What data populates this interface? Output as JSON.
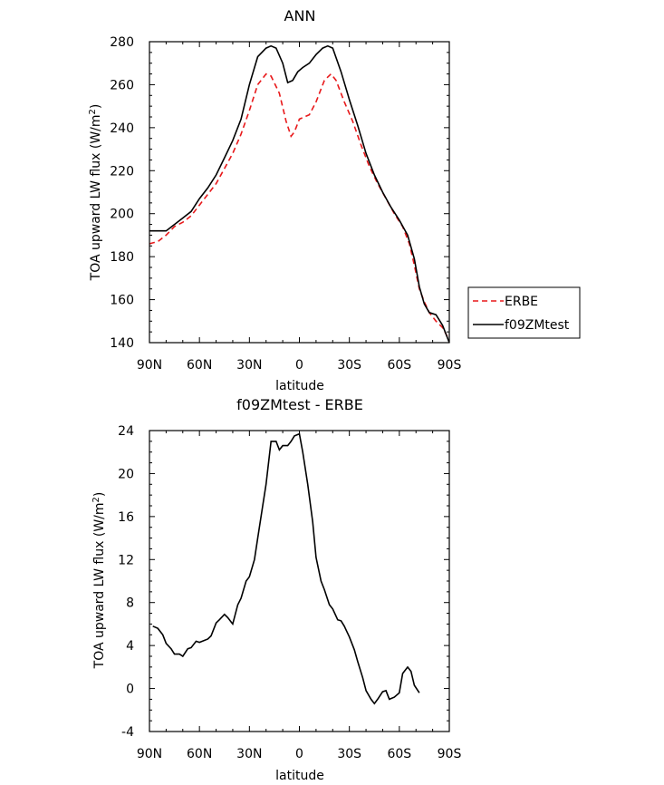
{
  "chart_data": [
    {
      "type": "line",
      "title": "ANN",
      "xlabel": "latitude",
      "ylabel": "TOA upward LW flux (W/m",
      "ylabel_sup": "2",
      "ylabel_tail": ")",
      "xlim": [
        -90,
        90
      ],
      "ylim": [
        140,
        280
      ],
      "x_ticks": [
        -90,
        -60,
        -30,
        0,
        30,
        60,
        90
      ],
      "x_tick_labels": [
        "90N",
        "60N",
        "30N",
        "0",
        "30S",
        "60S",
        "90S"
      ],
      "y_ticks": [
        140,
        160,
        180,
        200,
        220,
        240,
        260,
        280
      ],
      "y_tick_labels": [
        "140",
        "160",
        "180",
        "200",
        "220",
        "240",
        "260",
        "280"
      ],
      "legend_position": "right",
      "series": [
        {
          "name": "ERBE",
          "color": "#e8191b",
          "dash": "dashed",
          "points": [
            [
              -90,
              186
            ],
            [
              -85,
              187
            ],
            [
              -80,
              190
            ],
            [
              -75,
              194
            ],
            [
              -70,
              196
            ],
            [
              -65,
              199
            ],
            [
              -60,
              204
            ],
            [
              -55,
              209
            ],
            [
              -50,
              214
            ],
            [
              -45,
              221
            ],
            [
              -40,
              228
            ],
            [
              -35,
              237
            ],
            [
              -30,
              248
            ],
            [
              -25,
              260
            ],
            [
              -20,
              265
            ],
            [
              -17,
              264
            ],
            [
              -12,
              256
            ],
            [
              -8,
              243
            ],
            [
              -5,
              236
            ],
            [
              -3,
              238
            ],
            [
              0,
              244
            ],
            [
              3,
              245
            ],
            [
              6,
              246
            ],
            [
              10,
              252
            ],
            [
              15,
              262
            ],
            [
              19,
              265
            ],
            [
              22,
              262
            ],
            [
              27,
              252
            ],
            [
              32,
              243
            ],
            [
              37,
              232
            ],
            [
              42,
              222
            ],
            [
              47,
              214
            ],
            [
              52,
              207
            ],
            [
              57,
              200
            ],
            [
              62,
              194
            ],
            [
              66,
              186
            ],
            [
              69,
              176
            ],
            [
              72,
              165
            ],
            [
              75,
              159
            ],
            [
              78,
              154
            ],
            [
              82,
              150
            ],
            [
              86,
              147
            ],
            [
              90,
              141
            ]
          ]
        },
        {
          "name": "f09ZMtest",
          "color": "#000000",
          "dash": "solid",
          "points": [
            [
              -90,
              192
            ],
            [
              -85,
              192
            ],
            [
              -80,
              192
            ],
            [
              -75,
              195
            ],
            [
              -70,
              198
            ],
            [
              -65,
              201
            ],
            [
              -60,
              207
            ],
            [
              -55,
              212
            ],
            [
              -50,
              218
            ],
            [
              -45,
              226
            ],
            [
              -40,
              234
            ],
            [
              -35,
              244
            ],
            [
              -30,
              260
            ],
            [
              -25,
              273
            ],
            [
              -20,
              277
            ],
            [
              -17,
              278
            ],
            [
              -14,
              277
            ],
            [
              -10,
              270
            ],
            [
              -7,
              261
            ],
            [
              -4,
              262
            ],
            [
              -1,
              266
            ],
            [
              2,
              268
            ],
            [
              6,
              270
            ],
            [
              10,
              274
            ],
            [
              14,
              277
            ],
            [
              17,
              278
            ],
            [
              20,
              277
            ],
            [
              25,
              266
            ],
            [
              30,
              253
            ],
            [
              35,
              241
            ],
            [
              40,
              228
            ],
            [
              45,
              218
            ],
            [
              50,
              210
            ],
            [
              55,
              203
            ],
            [
              60,
              197
            ],
            [
              65,
              190
            ],
            [
              69,
              179
            ],
            [
              72,
              166
            ],
            [
              75,
              158
            ],
            [
              78,
              154
            ],
            [
              82,
              153
            ],
            [
              86,
              148
            ],
            [
              90,
              140
            ]
          ]
        }
      ]
    },
    {
      "type": "line",
      "title": "f09ZMtest - ERBE",
      "xlabel": "latitude",
      "ylabel": "TOA upward LW flux (W/m",
      "ylabel_sup": "2",
      "ylabel_tail": ")",
      "xlim": [
        -90,
        90
      ],
      "ylim": [
        -4,
        24
      ],
      "x_ticks": [
        -90,
        -60,
        -30,
        0,
        30,
        60,
        90
      ],
      "x_tick_labels": [
        "90N",
        "60N",
        "30N",
        "0",
        "30S",
        "60S",
        "90S"
      ],
      "y_ticks": [
        -4,
        0,
        4,
        8,
        12,
        16,
        20,
        24
      ],
      "y_tick_labels": [
        "-4",
        "0",
        "4",
        "8",
        "12",
        "16",
        "20",
        "24"
      ],
      "series": [
        {
          "color": "#000000",
          "dash": "solid",
          "points": [
            [
              -88,
              5.8
            ],
            [
              -85,
              5.6
            ],
            [
              -82,
              5.0
            ],
            [
              -80,
              4.2
            ],
            [
              -77,
              3.7
            ],
            [
              -75,
              3.2
            ],
            [
              -72,
              3.2
            ],
            [
              -70,
              3.0
            ],
            [
              -67,
              3.7
            ],
            [
              -65,
              3.8
            ],
            [
              -62,
              4.4
            ],
            [
              -60,
              4.3
            ],
            [
              -55,
              4.6
            ],
            [
              -53,
              4.9
            ],
            [
              -50,
              6.1
            ],
            [
              -48,
              6.4
            ],
            [
              -45,
              6.9
            ],
            [
              -43,
              6.6
            ],
            [
              -40,
              6.0
            ],
            [
              -37,
              7.8
            ],
            [
              -35,
              8.4
            ],
            [
              -32,
              10.0
            ],
            [
              -30,
              10.4
            ],
            [
              -27,
              12.0
            ],
            [
              -25,
              14.0
            ],
            [
              -22,
              17.0
            ],
            [
              -20,
              19.0
            ],
            [
              -17,
              23.0
            ],
            [
              -14,
              23.0
            ],
            [
              -12,
              22.2
            ],
            [
              -10,
              22.6
            ],
            [
              -7,
              22.6
            ],
            [
              -5,
              23.0
            ],
            [
              -3,
              23.5
            ],
            [
              0,
              23.7
            ],
            [
              2,
              22.0
            ],
            [
              5,
              19.0
            ],
            [
              8,
              15.5
            ],
            [
              10,
              12.2
            ],
            [
              13,
              10.0
            ],
            [
              15,
              9.2
            ],
            [
              18,
              7.8
            ],
            [
              20,
              7.4
            ],
            [
              23,
              6.4
            ],
            [
              25,
              6.3
            ],
            [
              27,
              5.8
            ],
            [
              30,
              4.8
            ],
            [
              33,
              3.6
            ],
            [
              35,
              2.5
            ],
            [
              38,
              1.0
            ],
            [
              40,
              -0.2
            ],
            [
              43,
              -1.0
            ],
            [
              45,
              -1.4
            ],
            [
              47,
              -1.0
            ],
            [
              50,
              -0.3
            ],
            [
              52,
              -0.2
            ],
            [
              54,
              -1.0
            ],
            [
              57,
              -0.8
            ],
            [
              60,
              -0.4
            ],
            [
              62,
              1.4
            ],
            [
              65,
              2.0
            ],
            [
              67,
              1.6
            ],
            [
              69,
              0.3
            ],
            [
              72,
              -0.4
            ]
          ]
        }
      ]
    }
  ]
}
